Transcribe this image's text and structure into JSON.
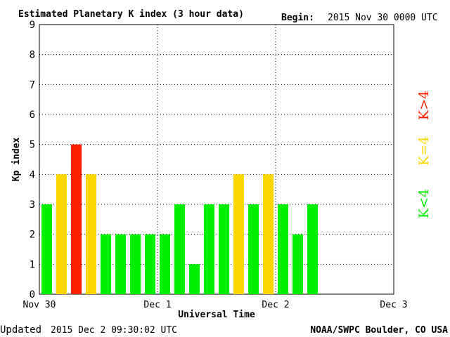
{
  "header": {
    "title": "Estimated Planetary K index (3 hour data)",
    "begin_label": "Begin:",
    "begin_value": "2015 Nov 30 0000 UTC"
  },
  "footer": {
    "updated_label": "Updated",
    "updated_value": "2015 Dec  2 09:30:02 UTC",
    "credit": "NOAA/SWPC Boulder, CO USA"
  },
  "colors": {
    "below4": "#00ee00",
    "equal4": "#ffd700",
    "above4": "#ff2200",
    "grid": "#000000"
  },
  "legend": [
    {
      "label": "K>4",
      "color": "#ff2200"
    },
    {
      "label": "K=4",
      "color": "#ffd700"
    },
    {
      "label": "K<4",
      "color": "#00ee00"
    }
  ],
  "chart_data": {
    "type": "bar",
    "title": "Estimated Planetary K index (3 hour data)",
    "xlabel": "Universal Time",
    "ylabel": "Kp index",
    "ylim": [
      0,
      9
    ],
    "yticks": [
      "0",
      "1",
      "2",
      "3",
      "4",
      "5",
      "6",
      "7",
      "8",
      "9"
    ],
    "xticks": [
      "Nov 30",
      "Dec 1",
      "Dec 2",
      "Dec 3"
    ],
    "slots_total": 24,
    "grid": true,
    "values": [
      3,
      4,
      5,
      4,
      2,
      2,
      2,
      2,
      2,
      3,
      1,
      3,
      3,
      4,
      3,
      4,
      3,
      2,
      3
    ]
  }
}
